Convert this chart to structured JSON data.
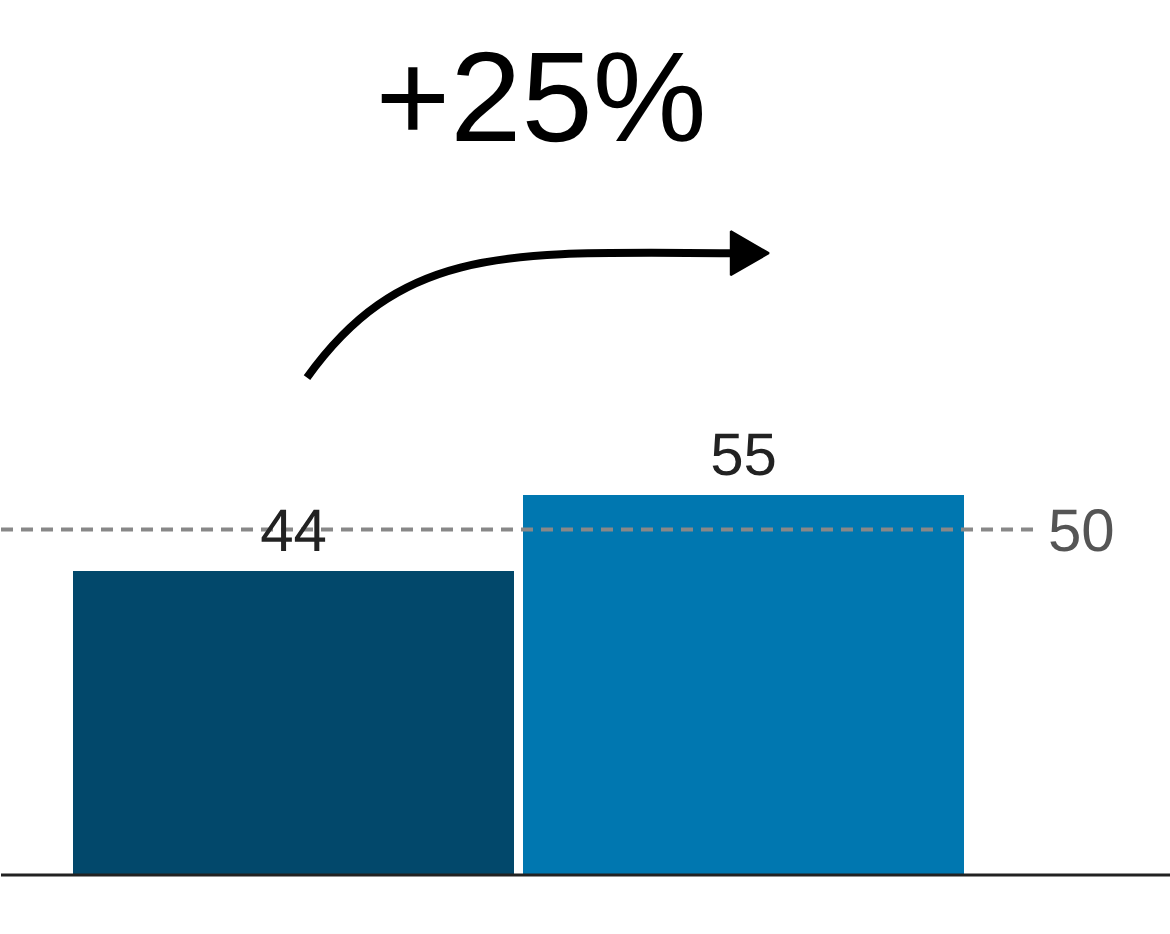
{
  "chart_data": {
    "type": "bar",
    "categories": [
      null,
      null
    ],
    "values": [
      44,
      55
    ],
    "colors": [
      "#02486b",
      "#0077b0"
    ],
    "data_labels": true,
    "ref_lines": [
      {
        "axis": "y",
        "value": 50,
        "label": "50",
        "color": "#888888",
        "line_style": "dashed"
      }
    ],
    "annotations": [
      "+25%"
    ],
    "grid": false
  }
}
